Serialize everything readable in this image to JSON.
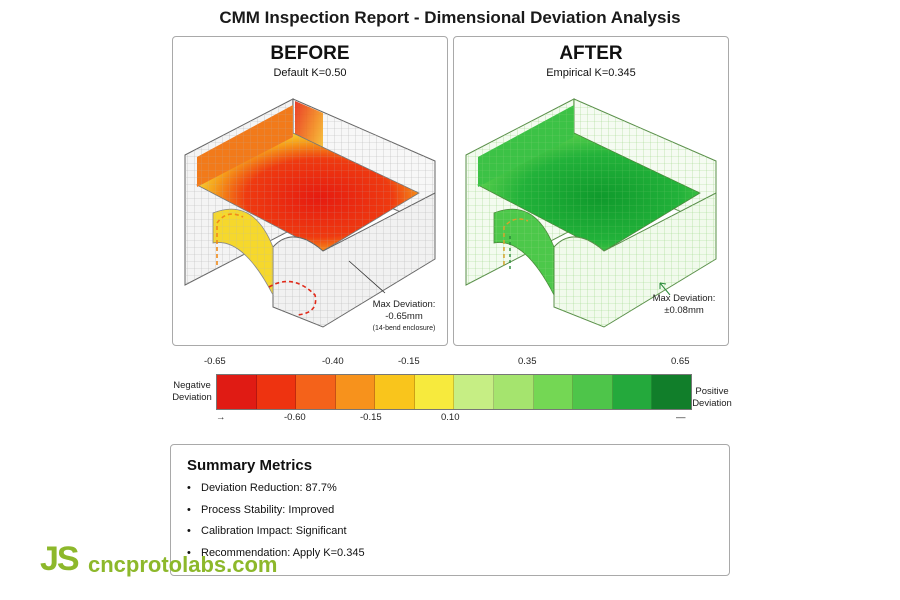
{
  "title": "CMM Inspection Report - Dimensional Deviation Analysis",
  "panels": {
    "before": {
      "heading": "BEFORE",
      "subheading": "Default K=0.50",
      "max_label": "Max Deviation:",
      "max_value": "-0.65mm",
      "max_note": "(14-bend enclosure)"
    },
    "after": {
      "heading": "AFTER",
      "subheading": "Empirical K=0.345",
      "max_label": "Max Deviation:",
      "max_value": "±0.08mm"
    }
  },
  "scale": {
    "top_ticks": [
      "-0.65",
      "-0.40",
      "-0.15",
      "0.35",
      "0.65"
    ],
    "bottom_ticks": [
      "-0.60",
      "-0.15",
      "0.10"
    ],
    "left_label_1": "Negative",
    "left_label_2": "Deviation",
    "right_label_1": "Positive",
    "right_label_2": "Deviation",
    "arrow_left": "→",
    "arrow_right": "—",
    "colors": [
      "#e01b14",
      "#ee3310",
      "#f4621a",
      "#f7921c",
      "#f9c51c",
      "#f7ea3d",
      "#c6ee84",
      "#a5e46e",
      "#74d754",
      "#4ec54a",
      "#24a93c",
      "#117e2a"
    ]
  },
  "summary": {
    "title": "Summary Metrics",
    "items": [
      "Deviation Reduction:  87.7%",
      "Process Stability:  Improved",
      "Calibration Impact:  Significant",
      "Recommendation:  Apply K=0.345"
    ]
  },
  "logo": {
    "mark": "JS",
    "text": "cncprotolabs.com"
  }
}
